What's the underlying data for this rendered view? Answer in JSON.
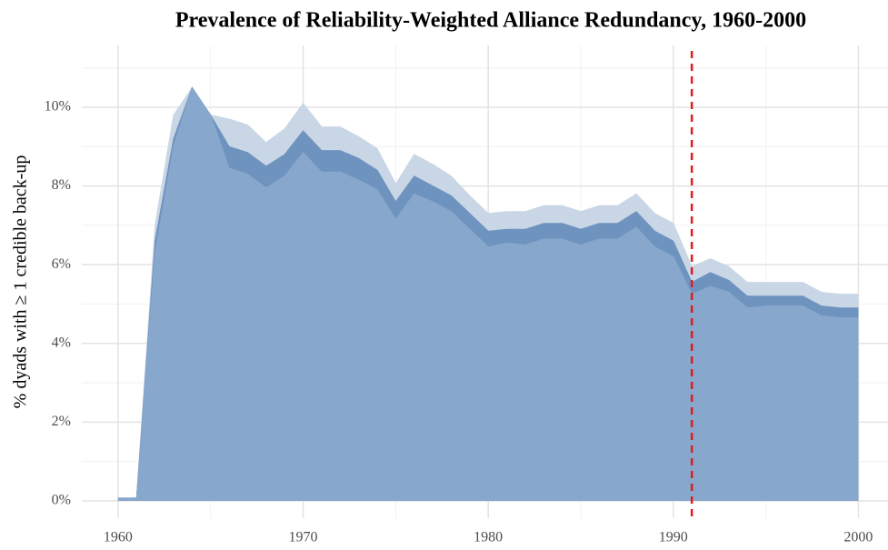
{
  "chart_data": {
    "type": "area",
    "title": "Prevalence of Reliability-Weighted Alliance Redundancy, 1960-2000",
    "y_label": "% dyads with ≥ 1 credible back-up",
    "x": [
      1960,
      1961,
      1962,
      1963,
      1964,
      1965,
      1966,
      1967,
      1968,
      1969,
      1970,
      1971,
      1972,
      1973,
      1974,
      1975,
      1976,
      1977,
      1978,
      1979,
      1980,
      1981,
      1982,
      1983,
      1984,
      1985,
      1986,
      1987,
      1988,
      1989,
      1990,
      1991,
      1992,
      1993,
      1994,
      1995,
      1996,
      1997,
      1998,
      1999,
      2000
    ],
    "series": [
      {
        "color": "#c9d6e5",
        "values": [
          0.07,
          0.07,
          7.0,
          9.8,
          10.5,
          9.8,
          9.7,
          9.55,
          9.1,
          9.45,
          10.1,
          9.5,
          9.5,
          9.25,
          8.95,
          8.05,
          8.8,
          8.55,
          8.25,
          7.75,
          7.3,
          7.35,
          7.35,
          7.5,
          7.5,
          7.35,
          7.5,
          7.5,
          7.8,
          7.3,
          7.05,
          5.95,
          6.15,
          5.95,
          5.55,
          5.55,
          5.55,
          5.55,
          5.3,
          5.25,
          5.25
        ]
      },
      {
        "color": "#6f93bf",
        "values": [
          0.07,
          0.07,
          6.6,
          9.2,
          10.5,
          9.8,
          9.0,
          8.85,
          8.5,
          8.8,
          9.4,
          8.9,
          8.9,
          8.7,
          8.4,
          7.6,
          8.25,
          8.0,
          7.75,
          7.3,
          6.85,
          6.9,
          6.9,
          7.05,
          7.05,
          6.9,
          7.05,
          7.05,
          7.35,
          6.85,
          6.6,
          5.55,
          5.8,
          5.6,
          5.2,
          5.2,
          5.2,
          5.2,
          4.95,
          4.9,
          4.9
        ]
      },
      {
        "color": "#87a8cc",
        "values": [
          0.07,
          0.07,
          6.3,
          9.0,
          10.5,
          9.8,
          8.45,
          8.3,
          7.95,
          8.25,
          8.85,
          8.35,
          8.35,
          8.15,
          7.9,
          7.15,
          7.8,
          7.6,
          7.35,
          6.9,
          6.45,
          6.55,
          6.5,
          6.65,
          6.65,
          6.5,
          6.65,
          6.65,
          6.95,
          6.45,
          6.2,
          5.25,
          5.45,
          5.3,
          4.9,
          4.95,
          4.95,
          4.95,
          4.7,
          4.65,
          4.65
        ]
      }
    ],
    "xlim": [
      1958.04,
      2001.6
    ],
    "ylim": [
      -0.44,
      11.57
    ],
    "xticks": [
      1960,
      1970,
      1980,
      1990,
      2000
    ],
    "x_minor_ticks": [
      1965,
      1975,
      1985,
      1995
    ],
    "yticks": [
      {
        "value": 0,
        "label": "0%"
      },
      {
        "value": 2,
        "label": "2%"
      },
      {
        "value": 4,
        "label": "4%"
      },
      {
        "value": 6,
        "label": "6%"
      },
      {
        "value": 8,
        "label": "8%"
      },
      {
        "value": 10,
        "label": "10%"
      }
    ],
    "y_minor_ticks": [
      1,
      3,
      5,
      7,
      9,
      11
    ],
    "grid": true,
    "reference_line": {
      "x": 1991,
      "color": "#e41a1c"
    }
  }
}
